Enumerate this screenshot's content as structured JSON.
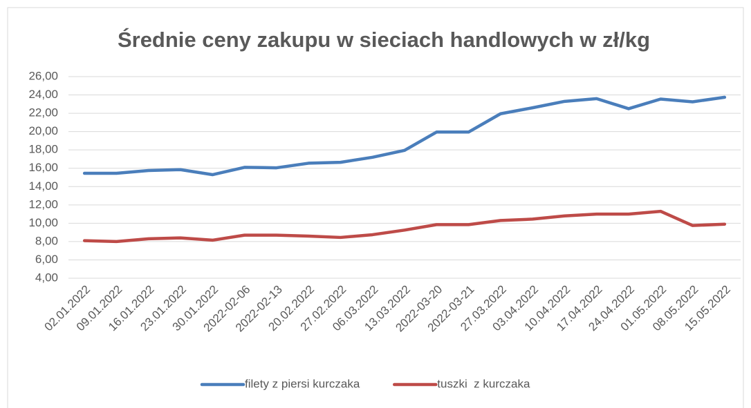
{
  "chart_data": {
    "type": "line",
    "title": "Średnie ceny zakupu w sieciach handlowych w zł/kg",
    "categories": [
      "02.01.2022",
      "09.01.2022",
      "16.01.2022",
      "23.01.2022",
      "30.01.2022",
      "2022-02-06",
      "2022-02-13",
      "20.02.2022",
      "27.02.2022",
      "06.03.2022",
      "13.03.2022",
      "2022-03-20",
      "2022-03-21",
      "27.03.2022",
      "03.04.2022",
      "10.04.2022",
      "17.04.2022",
      "24.04.2022",
      "01.05.2022",
      "08.05.2022",
      "15.05.2022"
    ],
    "series": [
      {
        "name": "filety z piersi kurczaka",
        "color": "#4a7ebb",
        "values": [
          15.45,
          15.45,
          15.75,
          15.85,
          15.3,
          16.1,
          16.05,
          16.55,
          16.65,
          17.2,
          17.95,
          19.95,
          19.95,
          21.95,
          22.6,
          23.3,
          23.6,
          22.5,
          23.55,
          23.25,
          23.75
        ]
      },
      {
        "name": "tuszki  z kurczaka",
        "color": "#be4b48",
        "values": [
          8.1,
          8.0,
          8.3,
          8.4,
          8.15,
          8.7,
          8.7,
          8.6,
          8.45,
          8.75,
          9.25,
          9.85,
          9.85,
          10.3,
          10.45,
          10.8,
          11.0,
          11.0,
          11.3,
          9.75,
          9.9
        ]
      }
    ],
    "ylim": [
      4,
      26
    ],
    "yticks": [
      {
        "value": 4,
        "label": "4,00"
      },
      {
        "value": 6,
        "label": "6,00"
      },
      {
        "value": 8,
        "label": "8,00"
      },
      {
        "value": 10,
        "label": "10,00"
      },
      {
        "value": 12,
        "label": "12,00"
      },
      {
        "value": 14,
        "label": "14,00"
      },
      {
        "value": 16,
        "label": "16,00"
      },
      {
        "value": 18,
        "label": "18,00"
      },
      {
        "value": 20,
        "label": "20,00"
      },
      {
        "value": 22,
        "label": "22,00"
      },
      {
        "value": 24,
        "label": "24,00"
      },
      {
        "value": 26,
        "label": "26,00"
      }
    ],
    "grid": true,
    "legend": "bottom"
  }
}
